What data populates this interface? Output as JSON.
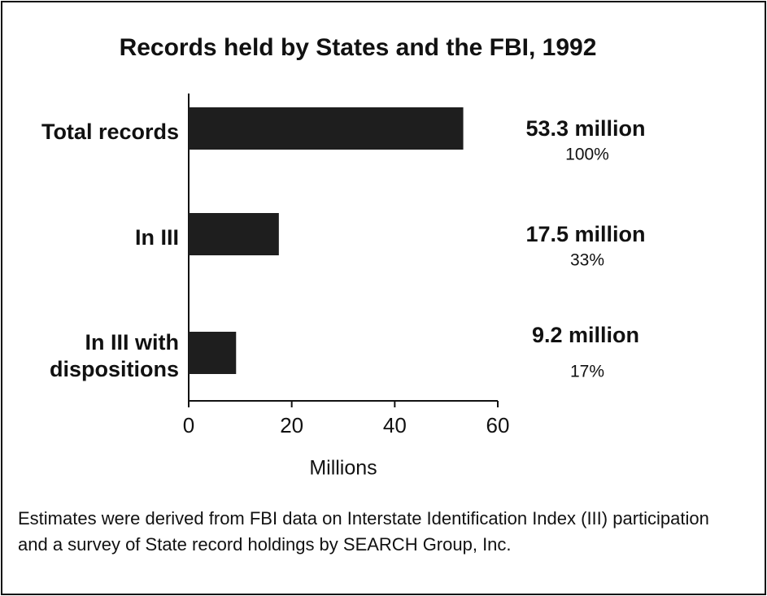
{
  "chart_data": {
    "type": "bar",
    "orientation": "horizontal",
    "title": "Records held by States and the FBI, 1992",
    "categories": [
      "Total records",
      "In III",
      "In III with dispositions"
    ],
    "values": [
      53.3,
      17.5,
      9.2
    ],
    "value_labels": [
      "53.3 million",
      "17.5 million",
      "9.2 million"
    ],
    "share_labels": [
      "100%",
      "33%",
      "17%"
    ],
    "color": "#1e1e1e",
    "xlim": [
      0,
      60
    ],
    "xticks": [
      0,
      20,
      40,
      60
    ],
    "xlabel": "Millions",
    "note": "Estimates were derived from FBI data on Interstate Identification Index (III) participation and a survey of State record holdings by SEARCH Group, Inc."
  }
}
